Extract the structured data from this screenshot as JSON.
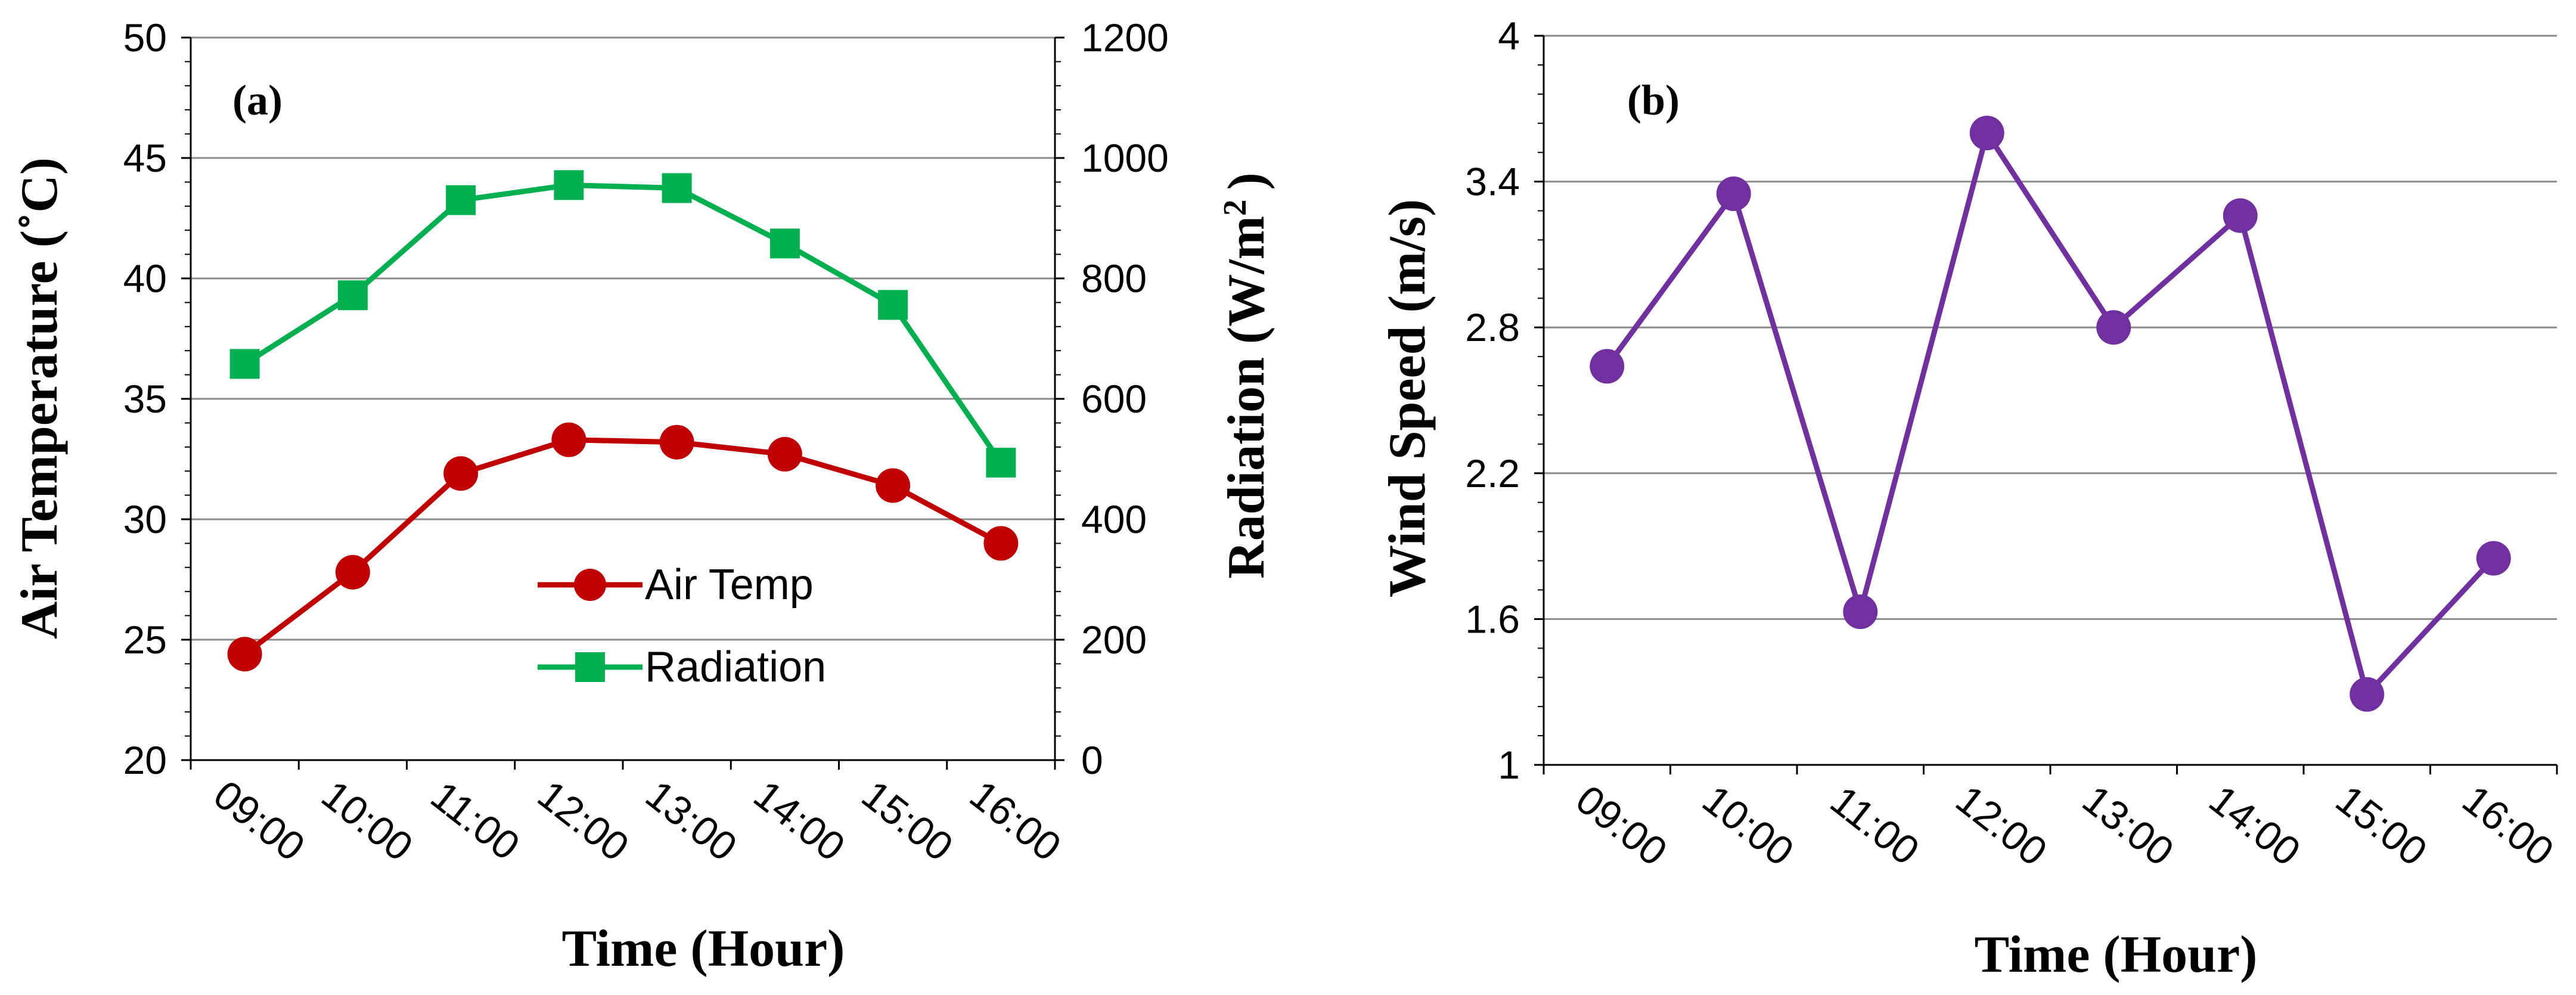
{
  "chart_data": [
    {
      "type": "line",
      "panel_label": "(a)",
      "xlabel": "Time (Hour)",
      "categories": [
        "09:00",
        "10:00",
        "11:00",
        "12:00",
        "13:00",
        "14:00",
        "15:00",
        "16:00"
      ],
      "left_axis": {
        "label": "Air Temperature (˚C)",
        "range": [
          20,
          50
        ],
        "ticks": [
          "20",
          "25",
          "30",
          "35",
          "40",
          "45",
          "50"
        ]
      },
      "right_axis": {
        "label_main": "Radiation (W/m",
        "label_sup": "2",
        "label_end": ")",
        "range": [
          0,
          1200
        ],
        "ticks": [
          "0",
          "200",
          "400",
          "600",
          "800",
          "1000",
          "1200"
        ]
      },
      "grid": true,
      "legend_position": "center-right",
      "series": [
        {
          "name": "Air Temp",
          "axis": "left",
          "marker": "circle",
          "color": "#c00000",
          "values": [
            24.4,
            27.8,
            31.9,
            33.3,
            33.2,
            32.7,
            31.4,
            29.0
          ]
        },
        {
          "name": "Radiation",
          "axis": "right",
          "marker": "square",
          "color": "#00b050",
          "values": [
            658,
            772,
            930,
            955,
            950,
            858,
            756,
            494
          ]
        }
      ]
    },
    {
      "type": "line",
      "panel_label": "(b)",
      "xlabel": "Time (Hour)",
      "categories": [
        "09:00",
        "10:00",
        "11:00",
        "12:00",
        "13:00",
        "14:00",
        "15:00",
        "16:00"
      ],
      "left_axis": {
        "label": "Wind Speed (m/s)",
        "range": [
          1,
          4
        ],
        "ticks": [
          "1",
          "1.6",
          "2.2",
          "2.8",
          "3.4",
          "4"
        ]
      },
      "grid": true,
      "series": [
        {
          "name": "Wind Speed",
          "axis": "left",
          "marker": "circle",
          "color": "#7030a0",
          "values": [
            2.64,
            3.35,
            1.63,
            3.6,
            2.8,
            3.26,
            1.29,
            1.85
          ]
        }
      ]
    }
  ]
}
